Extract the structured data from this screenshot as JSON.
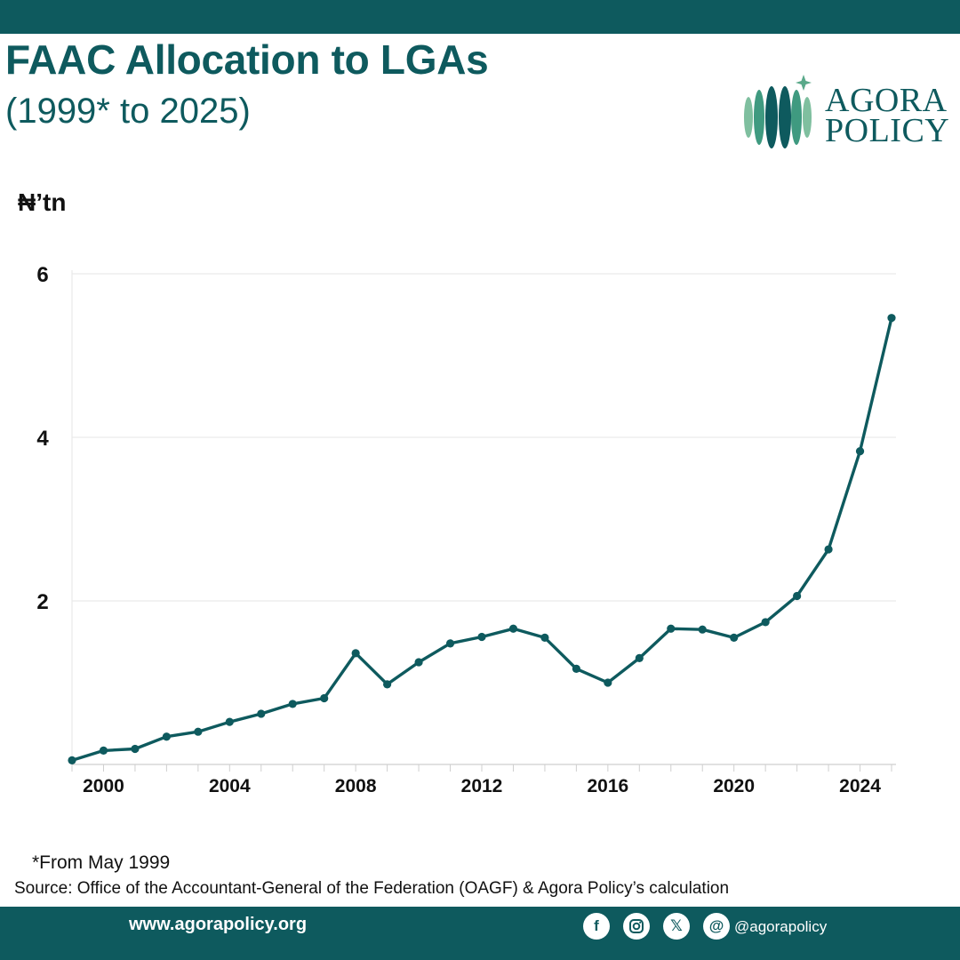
{
  "header": {
    "title": "FAAC Allocation to LGAs",
    "subtitle": "(1999* to 2025)",
    "logo_line1": "AGORA",
    "logo_line2": "POLICY"
  },
  "chart_data": {
    "type": "line",
    "ylabel": "₦’tn",
    "ylim": [
      0,
      6
    ],
    "yticks": [
      2,
      4,
      6
    ],
    "xlim": [
      1999,
      2025
    ],
    "xticks": [
      2000,
      2004,
      2008,
      2012,
      2016,
      2020,
      2024
    ],
    "grid": "horizontal",
    "x": [
      1999,
      2000,
      2001,
      2002,
      2003,
      2004,
      2005,
      2006,
      2007,
      2008,
      2009,
      2010,
      2011,
      2012,
      2013,
      2014,
      2015,
      2016,
      2017,
      2018,
      2019,
      2020,
      2021,
      2022,
      2023,
      2024,
      2025
    ],
    "series": [
      {
        "values": [
          0.05,
          0.17,
          0.19,
          0.34,
          0.4,
          0.52,
          0.62,
          0.74,
          0.81,
          1.36,
          0.98,
          1.25,
          1.48,
          1.56,
          1.66,
          1.55,
          1.17,
          1.0,
          1.3,
          1.66,
          1.65,
          1.55,
          1.74,
          2.06,
          2.63,
          3.83,
          5.46
        ],
        "color": "#0e5a5e"
      }
    ]
  },
  "footer": {
    "footnote": "*From May 1999",
    "source": "Source: Office of the Accountant-General of the Federation (OAGF) & Agora Policy’s calculation",
    "website": "www.agorapolicy.org",
    "handle": "@agorapolicy",
    "social_icons": [
      "facebook-icon",
      "instagram-icon",
      "x-icon",
      "threads-icon"
    ]
  }
}
